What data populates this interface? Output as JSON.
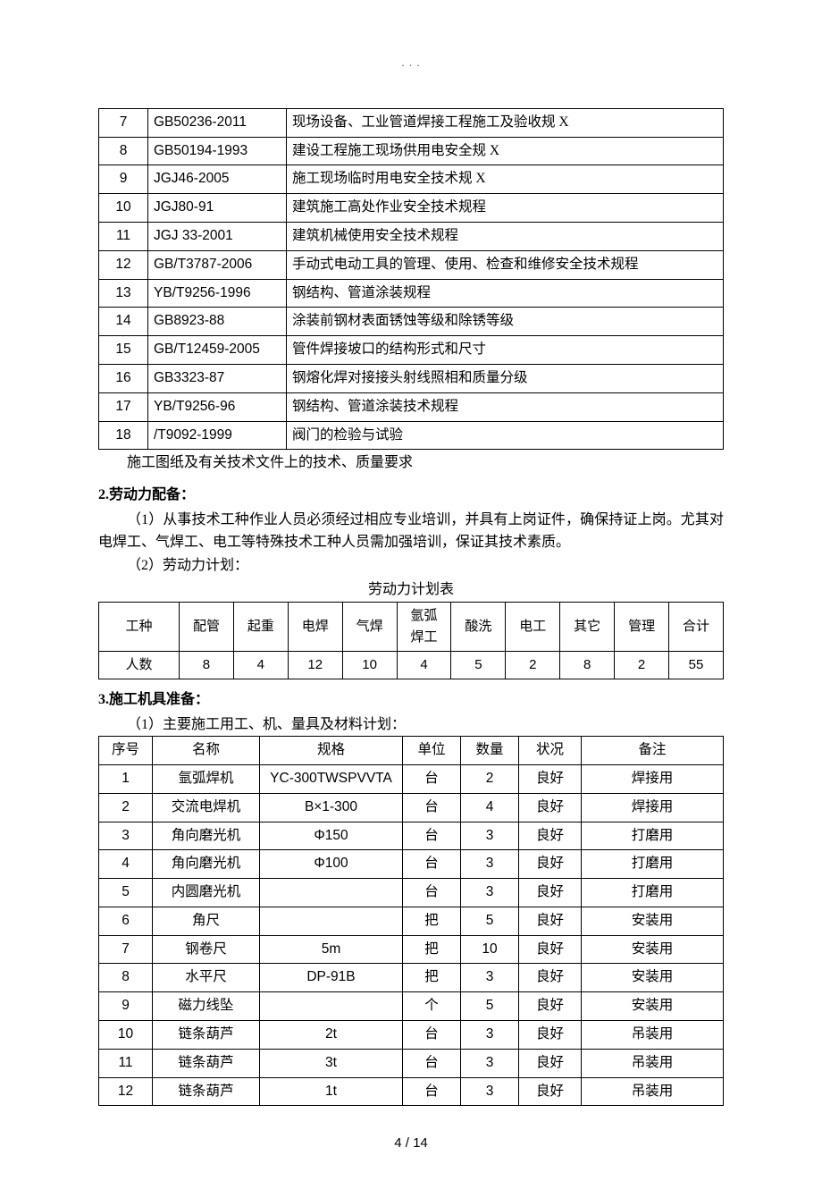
{
  "page_header": ". . .",
  "standards_table": {
    "rows": [
      {
        "num": "7",
        "code": "GB50236-2011",
        "desc": "现场设备、工业管道焊接工程施工及验收规 X"
      },
      {
        "num": "8",
        "code": "GB50194-1993",
        "desc": "建设工程施工现场供用电安全规 X"
      },
      {
        "num": "9",
        "code": "JGJ46-2005",
        "desc": "施工现场临时用电安全技术规 X"
      },
      {
        "num": "10",
        "code": "JGJ80-91",
        "desc": "建筑施工高处作业安全技术规程"
      },
      {
        "num": "11",
        "code": "JGJ 33-2001",
        "desc": "建筑机械使用安全技术规程"
      },
      {
        "num": "12",
        "code": "GB/T3787-2006",
        "desc": "手动式电动工具的管理、使用、检查和维修安全技术规程"
      },
      {
        "num": "13",
        "code": "YB/T9256-1996",
        "desc": "钢结构、管道涂装规程"
      },
      {
        "num": "14",
        "code": "GB8923-88",
        "desc": "涂装前钢材表面锈蚀等级和除锈等级"
      },
      {
        "num": "15",
        "code": "GB/T12459-2005",
        "desc": "管件焊接坡口的结构形式和尺寸"
      },
      {
        "num": "16",
        "code": "GB3323-87",
        "desc": "钢熔化焊对接接头射线照相和质量分级"
      },
      {
        "num": "17",
        "code": "YB/T9256-96",
        "desc": "钢结构、管道涂装技术规程"
      },
      {
        "num": "18",
        "code": "/T9092-1999",
        "desc": "阀门的检验与试验"
      }
    ],
    "below_caption": "施工图纸及有关技术文件上的技术、质量要求"
  },
  "section2": {
    "heading": "2.劳动力配备：",
    "para1": "（1）从事技术工种作业人员必须经过相应专业培训，并具有上岗证件，确保持证上岗。尤其对电焊工、气焊工、电工等特殊技术工种人员需加强培训，保证其技术素质。",
    "para2": "（2）劳动力计划：",
    "table_title": "劳动力计划表",
    "labor_table": {
      "header": [
        "工种",
        "配管",
        "起重",
        "电焊",
        "气焊",
        "氩弧\n焊工",
        "酸洗",
        "电工",
        "其它",
        "管理",
        "合计"
      ],
      "row_label": "人数",
      "values": [
        "8",
        "4",
        "12",
        "10",
        "4",
        "5",
        "2",
        "8",
        "2",
        "55"
      ]
    }
  },
  "section3": {
    "heading": "3.施工机具准备：",
    "para1": "（1）主要施工用工、机、量具及材料计划：",
    "equipment_table": {
      "columns": [
        "序号",
        "名称",
        "规格",
        "单位",
        "数量",
        "状况",
        "备注"
      ],
      "rows": [
        {
          "seq": "1",
          "name": "氩弧焊机",
          "spec": "YC-300TWSPVVTA",
          "unit": "台",
          "qty": "2",
          "status": "良好",
          "remark": "焊接用"
        },
        {
          "seq": "2",
          "name": "交流电焊机",
          "spec": "B×1-300",
          "unit": "台",
          "qty": "4",
          "status": "良好",
          "remark": "焊接用"
        },
        {
          "seq": "3",
          "name": "角向磨光机",
          "spec": "Φ150",
          "unit": "台",
          "qty": "3",
          "status": "良好",
          "remark": "打磨用"
        },
        {
          "seq": "4",
          "name": "角向磨光机",
          "spec": "Φ100",
          "unit": "台",
          "qty": "3",
          "status": "良好",
          "remark": "打磨用"
        },
        {
          "seq": "5",
          "name": "内圆磨光机",
          "spec": "",
          "unit": "台",
          "qty": "3",
          "status": "良好",
          "remark": "打磨用"
        },
        {
          "seq": "6",
          "name": "角尺",
          "spec": "",
          "unit": "把",
          "qty": "5",
          "status": "良好",
          "remark": "安装用"
        },
        {
          "seq": "7",
          "name": "钢卷尺",
          "spec": "5m",
          "unit": "把",
          "qty": "10",
          "status": "良好",
          "remark": "安装用"
        },
        {
          "seq": "8",
          "name": "水平尺",
          "spec": "DP-91B",
          "unit": "把",
          "qty": "3",
          "status": "良好",
          "remark": "安装用"
        },
        {
          "seq": "9",
          "name": "磁力线坠",
          "spec": "",
          "unit": "个",
          "qty": "5",
          "status": "良好",
          "remark": "安装用"
        },
        {
          "seq": "10",
          "name": "链条葫芦",
          "spec": "2t",
          "unit": "台",
          "qty": "3",
          "status": "良好",
          "remark": "吊装用"
        },
        {
          "seq": "11",
          "name": "链条葫芦",
          "spec": "3t",
          "unit": "台",
          "qty": "3",
          "status": "良好",
          "remark": "吊装用"
        },
        {
          "seq": "12",
          "name": "链条葫芦",
          "spec": "1t",
          "unit": "台",
          "qty": "3",
          "status": "良好",
          "remark": "吊装用"
        }
      ]
    }
  },
  "page_footer": "4 / 14"
}
